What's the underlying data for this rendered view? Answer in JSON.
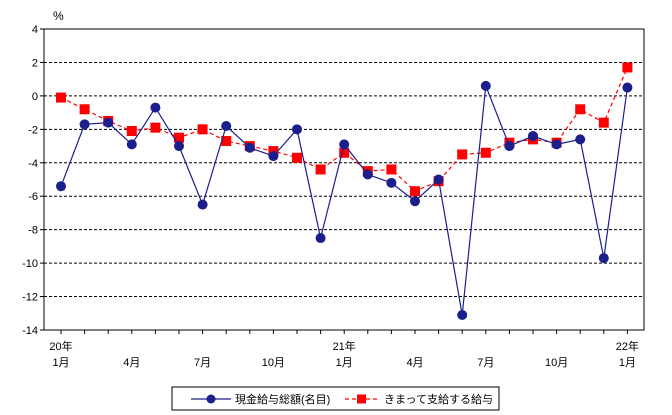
{
  "chart_data": {
    "type": "line",
    "unit_label": "%",
    "x_tick_labels": [
      {
        "index": 0,
        "top": "20年",
        "bottom": "1月"
      },
      {
        "index": 3,
        "top": "",
        "bottom": "4月"
      },
      {
        "index": 6,
        "top": "",
        "bottom": "7月"
      },
      {
        "index": 9,
        "top": "",
        "bottom": "10月"
      },
      {
        "index": 12,
        "top": "21年",
        "bottom": "1月"
      },
      {
        "index": 15,
        "top": "",
        "bottom": "4月"
      },
      {
        "index": 18,
        "top": "",
        "bottom": "7月"
      },
      {
        "index": 21,
        "top": "",
        "bottom": "10月"
      },
      {
        "index": 24,
        "top": "22年",
        "bottom": "1月"
      }
    ],
    "y_ticks": [
      4,
      2,
      0,
      -2,
      -4,
      -6,
      -8,
      -10,
      -12,
      -14
    ],
    "ylim": [
      -14,
      4
    ],
    "grid": true,
    "legend_position": "bottom-center",
    "series": [
      {
        "name": "現金給与総額(名目)",
        "color": "#1a1f8c",
        "marker": "circle",
        "line_style": "solid",
        "values": [
          -5.4,
          -1.7,
          -1.6,
          -2.9,
          -0.7,
          -3.0,
          -6.5,
          -1.8,
          -3.1,
          -3.6,
          -2.0,
          -8.5,
          -2.9,
          -4.7,
          -5.2,
          -6.3,
          -5.0,
          -13.1,
          0.6,
          -3.0,
          -2.4,
          -2.9,
          -2.6,
          -9.7,
          0.5
        ]
      },
      {
        "name": "きまって支給する給与",
        "color": "#ff0000",
        "marker": "square",
        "line_style": "dashed",
        "values": [
          -0.1,
          -0.8,
          -1.5,
          -2.1,
          -1.9,
          -2.5,
          -2.0,
          -2.7,
          -3.0,
          -3.3,
          -3.7,
          -4.4,
          -3.4,
          -4.5,
          -4.4,
          -5.7,
          -5.1,
          -3.5,
          -3.4,
          -2.8,
          -2.6,
          -2.8,
          -0.8,
          -1.6,
          1.7
        ]
      }
    ]
  }
}
